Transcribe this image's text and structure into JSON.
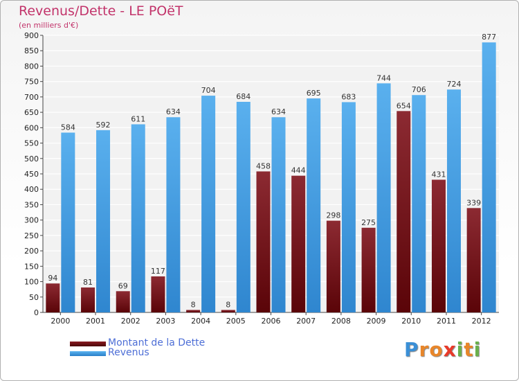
{
  "chart_data": {
    "type": "bar",
    "title": "Revenus/Dette - LE POëT",
    "subtitle": "(en milliers d'€)",
    "categories": [
      "2000",
      "2001",
      "2002",
      "2003",
      "2004",
      "2005",
      "2006",
      "2007",
      "2008",
      "2009",
      "2010",
      "2011",
      "2012"
    ],
    "series": [
      {
        "name": "Montant de la Dette",
        "color": "#6b0b12",
        "values": [
          94,
          81,
          69,
          117,
          8,
          8,
          458,
          444,
          298,
          275,
          654,
          431,
          339
        ]
      },
      {
        "name": "Revenus",
        "color": "#4aa3e6",
        "values": [
          584,
          592,
          611,
          634,
          704,
          684,
          634,
          695,
          683,
          744,
          706,
          724,
          877
        ]
      }
    ],
    "ylim": [
      0,
      900
    ],
    "yticks": [
      0,
      50,
      100,
      150,
      200,
      250,
      300,
      350,
      400,
      450,
      500,
      550,
      600,
      650,
      700,
      750,
      800,
      850,
      900
    ],
    "grid": true,
    "legend": "bottom-left"
  },
  "logo": {
    "letters": [
      "P",
      "r",
      "o",
      "x",
      "i",
      "t",
      "i"
    ],
    "colors": [
      "#3a8fd6",
      "#e8862a",
      "#e8862a",
      "#e83a2a",
      "#6ab04c",
      "#e8862a",
      "#6ab04c"
    ]
  }
}
